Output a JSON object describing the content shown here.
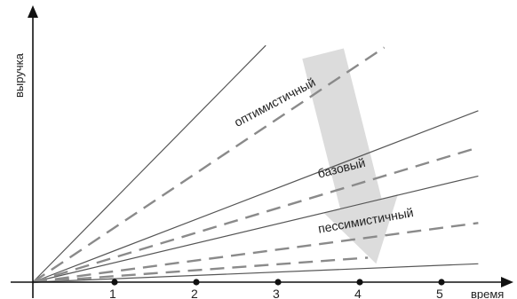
{
  "chart_data": {
    "type": "line",
    "title": "",
    "xlabel": "время",
    "ylabel": "выручка",
    "x_ticks": [
      1,
      2,
      3,
      4,
      5
    ],
    "xlim": [
      0,
      5.9
    ],
    "ylim": [
      0,
      6.6
    ],
    "grid": false,
    "legend": "none",
    "colors": {
      "solid": "#555555",
      "dashed": "#8a8a8a",
      "arrow": "#dcdcdc",
      "axis": "#111111"
    },
    "solid_lines": [
      {
        "x": [
          0,
          2.85
        ],
        "y": [
          0,
          5.8
        ]
      },
      {
        "x": [
          0,
          5.45
        ],
        "y": [
          0,
          4.2
        ]
      },
      {
        "x": [
          0,
          5.45
        ],
        "y": [
          0,
          2.6
        ]
      },
      {
        "x": [
          0,
          5.45
        ],
        "y": [
          0,
          0.45
        ]
      }
    ],
    "dashed_lines": [
      {
        "x": [
          0,
          4.3
        ],
        "y": [
          0,
          5.75
        ]
      },
      {
        "x": [
          0,
          5.45
        ],
        "y": [
          0,
          3.3
        ]
      },
      {
        "x": [
          0,
          5.45
        ],
        "y": [
          0,
          1.45
        ]
      },
      {
        "x": [
          0,
          4.1
        ],
        "y": [
          0,
          0.6
        ]
      }
    ],
    "scenario_labels": [
      {
        "text": "оптимистичный",
        "x": 2.5,
        "y": 3.8,
        "angle": -28
      },
      {
        "text": "базовый",
        "x": 3.5,
        "y": 2.55,
        "angle": -14
      },
      {
        "text": "пессимистичный",
        "x": 3.5,
        "y": 1.2,
        "angle": -10
      }
    ],
    "annotations": [
      {
        "type": "arrow",
        "from": [
          3.55,
          5.6
        ],
        "to": [
          4.2,
          0.45
        ],
        "meaning": "scenario range"
      }
    ]
  }
}
